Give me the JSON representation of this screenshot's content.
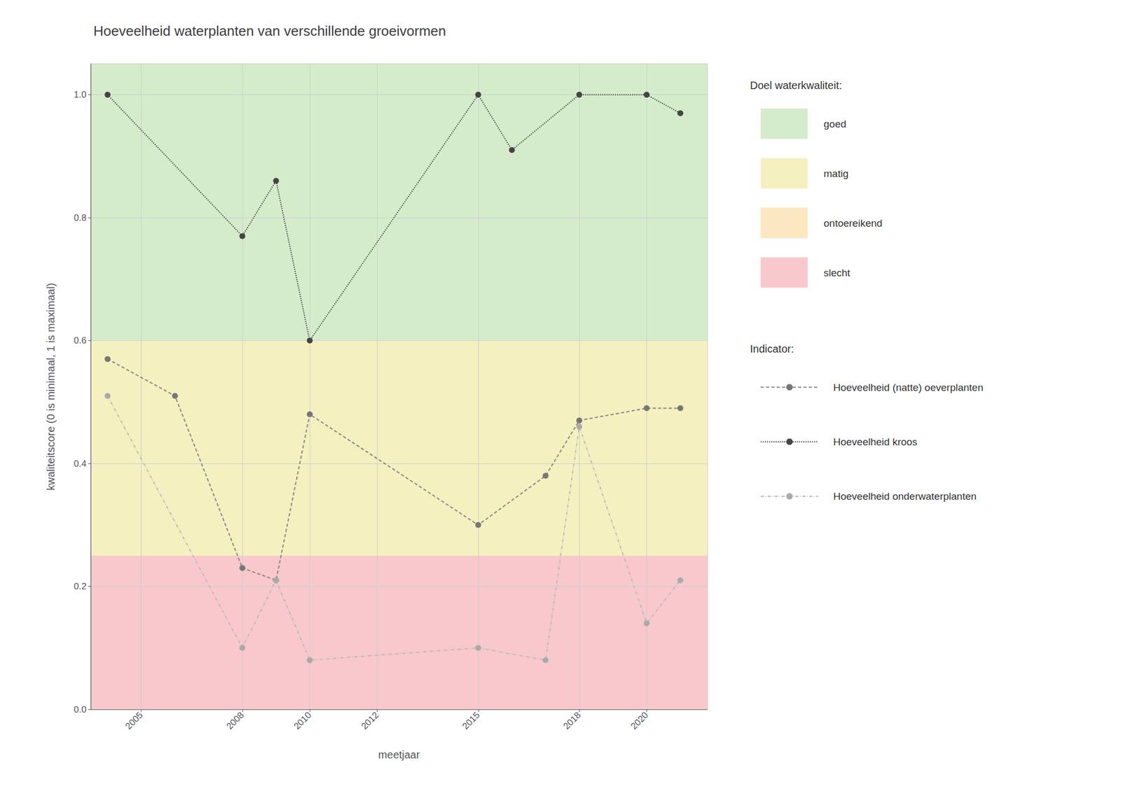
{
  "chart_data": {
    "type": "line",
    "title": "Hoeveelheid waterplanten van verschillende groeivormen",
    "x_label": "meetjaar",
    "y_label": "kwaliteitscore (0 is minimaal, 1 is maximaal)",
    "xlim": [
      2003.5,
      2021.8
    ],
    "ylim": [
      0.0,
      1.05
    ],
    "xticks": [
      2005,
      2008,
      2010,
      2012,
      2015,
      2018,
      2020
    ],
    "yticks": [
      {
        "value": 0,
        "label": "0.0"
      },
      0.2,
      0.4,
      0.6,
      0.8,
      {
        "value": 1,
        "label": "1.0"
      }
    ],
    "grid": true,
    "legend": "right",
    "zones_title": "Doel waterkwaliteit:",
    "zones": [
      {
        "name": "goed",
        "ymin": 0.6,
        "ymax": 1.05,
        "color": "#d5eccb"
      },
      {
        "name": "matig",
        "ymin": 0.25,
        "ymax": 0.6,
        "color": "#f5f0c0"
      },
      {
        "name": "ontoereikend",
        "ymin": 0.25,
        "ymax": 0.25,
        "color": "#fce8c0"
      },
      {
        "name": "slecht",
        "ymin": 0.0,
        "ymax": 0.25,
        "color": "#f8c8cc"
      }
    ],
    "series_title": "Indicator:",
    "series": [
      {
        "name": "Hoeveelheid (natte) oeverplanten",
        "color": "#888888",
        "marker_color": "#777777",
        "line_style": "dashed",
        "marker": "circle",
        "x": [
          2004,
          2006,
          2008,
          2009,
          2010,
          2015,
          2017,
          2018,
          2020,
          2021
        ],
        "values": [
          0.57,
          0.51,
          0.23,
          0.21,
          0.48,
          0.3,
          0.38,
          0.47,
          0.49,
          0.49
        ]
      },
      {
        "name": "Hoeveelheid kroos",
        "color": "#555555",
        "marker_color": "#444444",
        "line_style": "dotted",
        "marker": "circle",
        "x": [
          2004,
          2008,
          2009,
          2010,
          2015,
          2016,
          2018,
          2020,
          2021
        ],
        "values": [
          1.0,
          0.77,
          0.86,
          0.6,
          1.0,
          0.91,
          1.0,
          1.0,
          0.97
        ]
      },
      {
        "name": "Hoeveelheid onderwaterplanten",
        "color": "#bbbbbb",
        "marker_color": "#aaaaaa",
        "line_style": "dashdot",
        "marker": "circle",
        "x": [
          2004,
          2008,
          2009,
          2010,
          2015,
          2017,
          2018,
          2020,
          2021
        ],
        "values": [
          0.51,
          0.1,
          0.21,
          0.08,
          0.1,
          0.08,
          0.46,
          0.14,
          0.21
        ]
      }
    ]
  }
}
